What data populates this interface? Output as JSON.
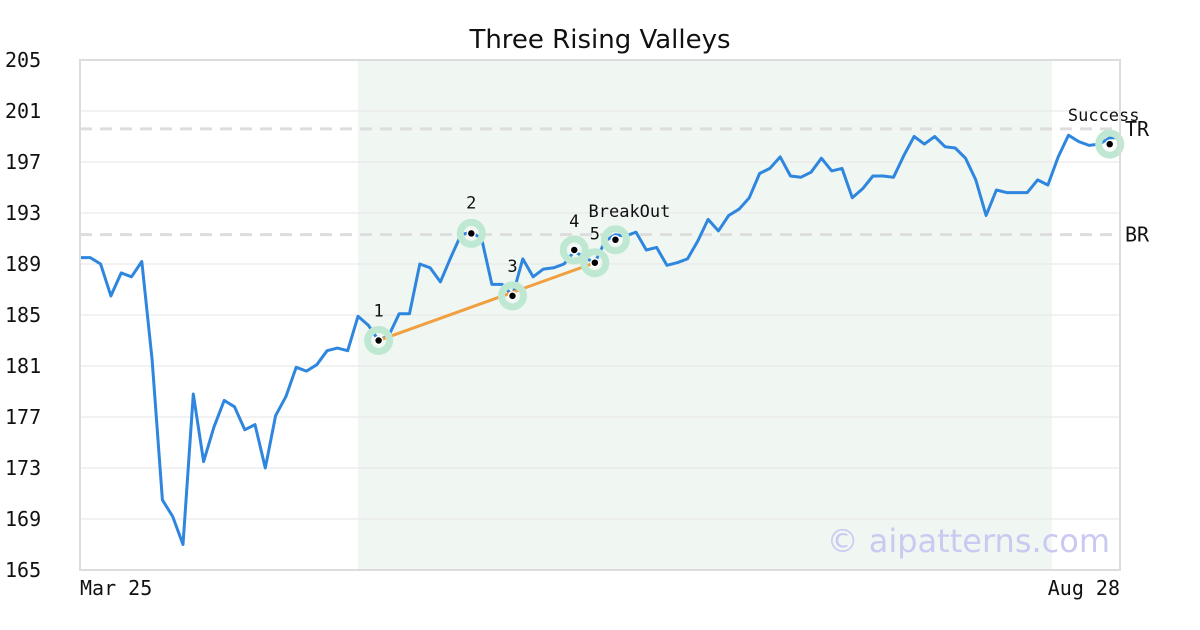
{
  "chart_data": {
    "type": "line",
    "title": "Three Rising Valleys",
    "xlabel": "",
    "ylabel": "",
    "x_tick_labels": [
      "Mar 25",
      "Aug 28"
    ],
    "y_ticks": [
      165,
      169,
      173,
      177,
      181,
      185,
      189,
      193,
      197,
      201,
      205
    ],
    "ylim": [
      165,
      205
    ],
    "n_points": 102,
    "grid": "horizontal",
    "series": [
      {
        "color": "#2e86de",
        "values": [
          189.5,
          189.5,
          189.0,
          186.5,
          188.3,
          188.0,
          189.2,
          181.5,
          170.5,
          169.2,
          167.0,
          178.8,
          173.5,
          176.2,
          178.3,
          177.8,
          176.0,
          176.4,
          173.0,
          177.1,
          178.6,
          180.9,
          180.6,
          181.1,
          182.2,
          182.4,
          182.2,
          184.9,
          184.2,
          183.0,
          183.4,
          185.1,
          185.1,
          189.0,
          188.7,
          187.6,
          189.5,
          191.3,
          191.5,
          191.0,
          187.4,
          187.4,
          186.5,
          189.4,
          188.0,
          188.6,
          188.7,
          189.0,
          190.0,
          189.5,
          189.1,
          190.8,
          191.3,
          191.2,
          191.5,
          190.1,
          190.3,
          188.9,
          189.1,
          189.4,
          190.8,
          192.5,
          191.6,
          192.8,
          193.3,
          194.2,
          196.1,
          196.5,
          197.4,
          195.9,
          195.8,
          196.2,
          197.3,
          196.3,
          196.5,
          194.2,
          194.9,
          195.9,
          195.9,
          195.8,
          197.5,
          199.0,
          198.4,
          199.0,
          198.2,
          198.1,
          197.3,
          195.6,
          192.8,
          194.8,
          194.6,
          194.6,
          194.6,
          195.6,
          195.2,
          197.4,
          199.1,
          198.6,
          198.3,
          198.4,
          198.9,
          198.9
        ]
      }
    ],
    "shaded_region": {
      "from_index": 27,
      "to_index": 102,
      "color": "#f0f7f3"
    },
    "trendline": {
      "color": "#f0a040",
      "points": [
        {
          "index": 29,
          "value": 183.0
        },
        {
          "index": 50,
          "value": 189.1
        }
      ]
    },
    "horizontal_levels": [
      {
        "label": "TR",
        "value": 199.6
      },
      {
        "label": "BR",
        "value": 191.3
      }
    ],
    "markers": [
      {
        "label": "1",
        "index": 29,
        "value": 183.0
      },
      {
        "label": "2",
        "index": 38,
        "value": 191.4
      },
      {
        "label": "3",
        "index": 42,
        "value": 186.5
      },
      {
        "label": "4",
        "index": 48,
        "value": 190.1
      },
      {
        "label": "5",
        "index": 50,
        "value": 189.1
      },
      {
        "label": "BreakOut",
        "index": 52,
        "value": 190.9
      },
      {
        "label": "Success",
        "index": 100,
        "value": 198.4
      }
    ],
    "marker_color": "#bfe8d2",
    "watermark": "© aipatterns.com"
  }
}
